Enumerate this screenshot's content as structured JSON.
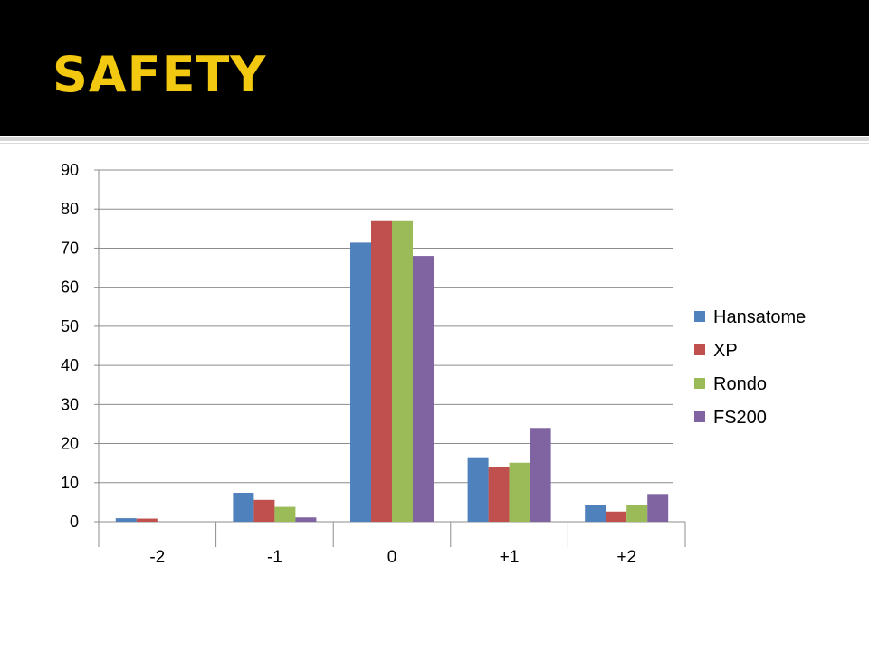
{
  "slide": {
    "title": "SAFETY",
    "title_color": "#F2C811",
    "header_background": "#000000"
  },
  "chart_data": {
    "type": "bar",
    "categories": [
      "-2",
      "-1",
      "0",
      "+1",
      "+2"
    ],
    "series": [
      {
        "name": "Hansatome",
        "color": "#4F81BD",
        "values": [
          0.9,
          7.4,
          71.4,
          16.5,
          4.3
        ]
      },
      {
        "name": "XP",
        "color": "#C0504D",
        "values": [
          0.8,
          5.6,
          77.1,
          14.1,
          2.6
        ]
      },
      {
        "name": "Rondo",
        "color": "#9BBB59",
        "values": [
          0,
          3.8,
          77.1,
          15.1,
          4.3
        ]
      },
      {
        "name": "FS200",
        "color": "#8064A2",
        "values": [
          0,
          1.1,
          68.0,
          24.0,
          7.1
        ]
      }
    ],
    "ylim": [
      0,
      90
    ],
    "yticks": [
      0,
      10,
      20,
      30,
      40,
      50,
      60,
      70,
      80,
      90
    ],
    "grid": true,
    "legend_position": "right",
    "title": "",
    "xlabel": "",
    "ylabel": ""
  }
}
